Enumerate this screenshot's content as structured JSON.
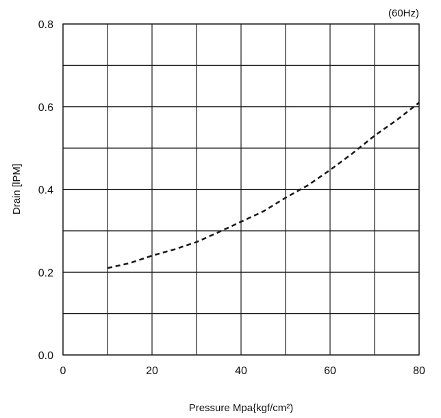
{
  "chart_data": {
    "type": "line",
    "note": "(60Hz)",
    "xlabel": "Pressure Mpa{kgf/cm²)",
    "ylabel": "Drain [lPM]",
    "xlim": [
      0,
      80
    ],
    "ylim": [
      0,
      0.8
    ],
    "x_ticks": [
      0,
      10,
      20,
      30,
      40,
      50,
      60,
      70,
      80
    ],
    "y_ticks": [
      0,
      0.1,
      0.2,
      0.3,
      0.4,
      0.5,
      0.6,
      0.7,
      0.8
    ],
    "x_tick_labels": [
      "0",
      "20",
      "40",
      "60",
      "80"
    ],
    "y_tick_labels": [
      "0.0",
      "0.2",
      "0.4",
      "0.6",
      "0.8"
    ],
    "grid": true,
    "series": [
      {
        "style": "dashed",
        "x": [
          10,
          15,
          20,
          25,
          30,
          35,
          40,
          45,
          50,
          55,
          60,
          65,
          70,
          75,
          80
        ],
        "values": [
          0.21,
          0.222,
          0.24,
          0.255,
          0.273,
          0.297,
          0.322,
          0.347,
          0.38,
          0.41,
          0.447,
          0.487,
          0.53,
          0.568,
          0.61
        ]
      }
    ]
  }
}
